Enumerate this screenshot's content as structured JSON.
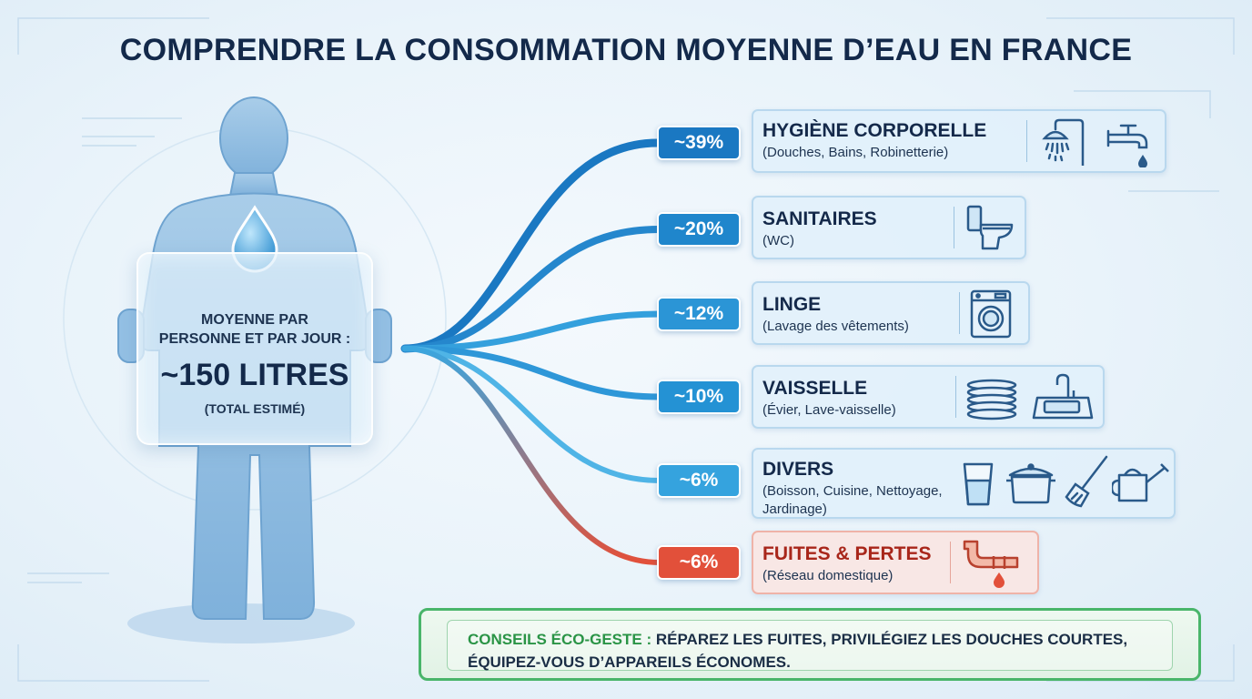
{
  "title": "COMPRENDRE LA CONSOMMATION MOYENNE D’EAU EN FRANCE",
  "sign": {
    "label_line1": "MOYENNE PAR",
    "label_line2": "PERSONNE ET PAR JOUR :",
    "value": "~150 LITRES",
    "note": "(TOTAL ESTIMÉ)"
  },
  "categories": [
    {
      "percent": "~39%",
      "title": "HYGIÈNE CORPORELLE",
      "subtitle": "(Douches, Bains, Robinetterie)",
      "icons": [
        "shower-icon",
        "faucet-icon"
      ],
      "color": "#1a78c2"
    },
    {
      "percent": "~20%",
      "title": "SANITAIRES",
      "subtitle": "(WC)",
      "icons": [
        "toilet-icon"
      ],
      "color": "#1f86cc"
    },
    {
      "percent": "~12%",
      "title": "LINGE",
      "subtitle": "(Lavage des vêtements)",
      "icons": [
        "washing-machine-icon"
      ],
      "color": "#2b95d6"
    },
    {
      "percent": "~10%",
      "title": "VAISSELLE",
      "subtitle": "(Évier, Lave-vaisselle)",
      "icons": [
        "plates-icon",
        "sink-icon"
      ],
      "color": "#2492d4"
    },
    {
      "percent": "~6%",
      "title": "DIVERS",
      "subtitle_line1": "(Boisson, Cuisine, Nettoyage,",
      "subtitle_line2": "Jardinage)",
      "icons": [
        "glass-icon",
        "pot-icon",
        "broom-icon",
        "watering-can-icon"
      ],
      "color": "#35a3de"
    },
    {
      "percent": "~6%",
      "title": "FUITES & PERTES",
      "subtitle": "(Réseau domestique)",
      "icons": [
        "leaking-pipe-icon"
      ],
      "color": "#e2503a"
    }
  ],
  "tips": {
    "label": "CONSEILS ÉCO-GESTE :",
    "text": " RÉPAREZ LES FUITES, PRIVILÉGIEZ LES DOUCHES COURTES, ÉQUIPEZ-VOUS D’APPAREILS ÉCONOMES."
  },
  "colors": {
    "title": "#13294a",
    "branch_blue": "#1a78c2",
    "branch_light": "#4fb4e6",
    "leak_red": "#e2503a",
    "eco_green": "#2a9446",
    "figure": "#8fbde2"
  }
}
